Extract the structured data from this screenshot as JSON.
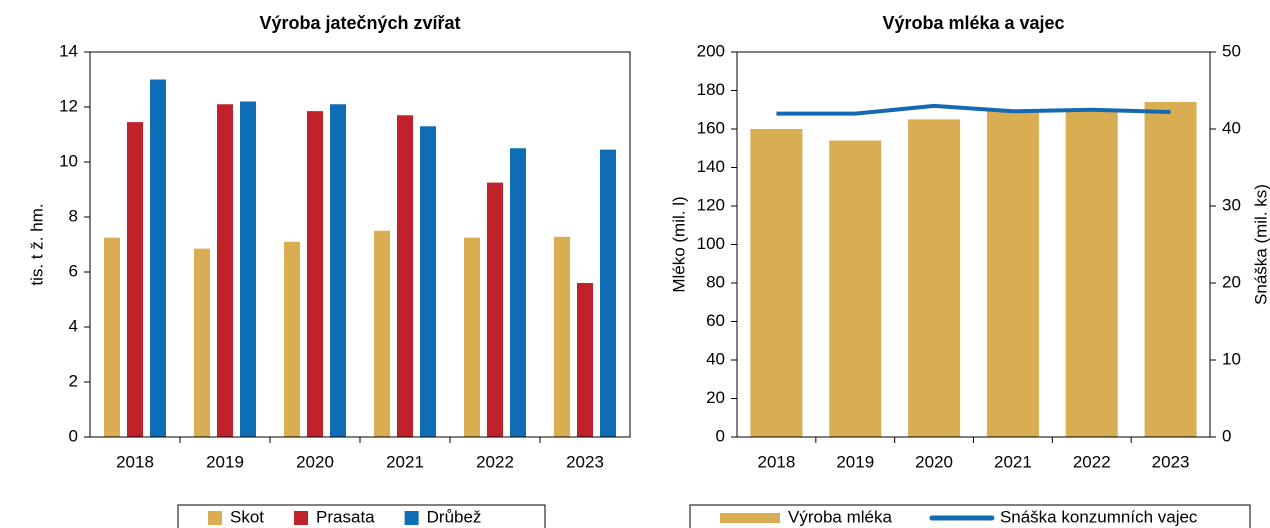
{
  "chart_data": [
    {
      "type": "bar",
      "title": "Výroba jatečných zvířat",
      "y_label": "tis. t ž. hm.",
      "categories": [
        "2018",
        "2019",
        "2020",
        "2021",
        "2022",
        "2023"
      ],
      "series": [
        {
          "name": "Skot",
          "color": "#d9ad52",
          "values": [
            7.25,
            6.85,
            7.1,
            7.5,
            7.25,
            7.28
          ]
        },
        {
          "name": "Prasata",
          "color": "#c0222b",
          "values": [
            11.45,
            12.1,
            11.85,
            11.7,
            9.25,
            5.6
          ]
        },
        {
          "name": "Drůbež",
          "color": "#0f6db5",
          "values": [
            13.0,
            12.2,
            12.1,
            11.3,
            10.5,
            10.45
          ]
        }
      ],
      "ylim": [
        0,
        14
      ],
      "yticks": [
        0,
        2,
        4,
        6,
        8,
        10,
        12,
        14
      ],
      "grid": false,
      "legend": "bottom"
    },
    {
      "type": "combo",
      "title": "Výroba mléka a vajec",
      "y_label": "Mléko (mil. l)",
      "y2_label": "Snáška (mil. ks)",
      "categories": [
        "2018",
        "2019",
        "2020",
        "2021",
        "2022",
        "2023"
      ],
      "series": [
        {
          "name": "Výroba mléka",
          "type": "bar",
          "color": "#d9ad52",
          "values": [
            160,
            154,
            165,
            170,
            169,
            174
          ]
        },
        {
          "name": "Snáška konzumních vajec",
          "type": "line",
          "axis": "y2",
          "color": "#1469b3",
          "values": [
            42,
            42,
            43,
            42.3,
            42.5,
            42.2
          ]
        }
      ],
      "ylim": [
        0,
        200
      ],
      "yticks": [
        0,
        20,
        40,
        60,
        80,
        100,
        120,
        140,
        160,
        180,
        200
      ],
      "y2lim": [
        0,
        50
      ],
      "y2ticks": [
        0,
        10,
        20,
        30,
        40,
        50
      ],
      "grid": false,
      "legend": "bottom"
    }
  ]
}
